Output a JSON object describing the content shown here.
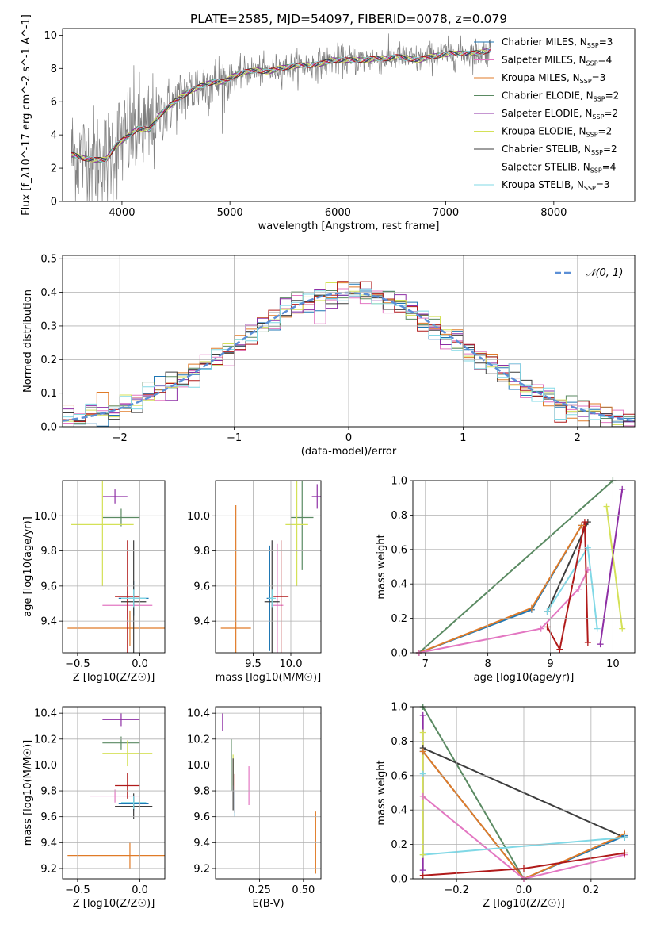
{
  "figure": {
    "title": "PLATE=2585, MJD=54097, FIBERID=0078, z=0.079"
  },
  "colors": {
    "Chabrier MILES": "#1f77b4",
    "Salpeter MILES": "#e377c2",
    "Kroupa MILES": "#e07b28",
    "Chabrier ELODIE": "#5a8a62",
    "Salpeter ELODIE": "#8e2fa5",
    "Kroupa ELODIE": "#d4e157",
    "Chabrier STELIB": "#3d3d3d",
    "Salpeter STELIB": "#b01a1a",
    "Kroupa STELIB": "#80d8e6",
    "data": "#808080",
    "gauss": "#5b8fd6"
  },
  "chart_data": [
    {
      "id": "spectrum",
      "type": "line",
      "xlabel": "wavelength [Angstrom, rest frame]",
      "ylabel": "Flux [f_λ10^-17 erg cm^-2 s^-1 A^-1]",
      "xlim": [
        3450,
        8750
      ],
      "ylim": [
        0,
        10.4
      ],
      "xticks": [
        4000,
        5000,
        6000,
        7000,
        8000
      ],
      "yticks": [
        0,
        2,
        4,
        6,
        8,
        10
      ],
      "grid": false,
      "legend_position": "right",
      "legend": [
        {
          "label": "Chabrier MILES, N_SSP=3",
          "series": "Chabrier MILES"
        },
        {
          "label": "Salpeter MILES, N_SSP=4",
          "series": "Salpeter MILES"
        },
        {
          "label": "Kroupa MILES, N_SSP=3",
          "series": "Kroupa MILES"
        },
        {
          "label": "Chabrier ELODIE, N_SSP=2",
          "series": "Chabrier ELODIE"
        },
        {
          "label": "Salpeter ELODIE, N_SSP=2",
          "series": "Salpeter ELODIE"
        },
        {
          "label": "Kroupa ELODIE, N_SSP=2",
          "series": "Kroupa ELODIE"
        },
        {
          "label": "Chabrier STELIB, N_SSP=2",
          "series": "Chabrier STELIB"
        },
        {
          "label": "Salpeter STELIB, N_SSP=4",
          "series": "Salpeter STELIB"
        },
        {
          "label": "Kroupa STELIB, N_SSP=3",
          "series": "Kroupa STELIB"
        }
      ],
      "continuum": {
        "x": [
          3550,
          3650,
          3750,
          3850,
          3950,
          4050,
          4150,
          4250,
          4350,
          4450,
          4550,
          4650,
          4750,
          4850,
          4950,
          5050,
          5150,
          5250,
          5350,
          5450,
          5550,
          5650,
          5750,
          5850,
          5950,
          6050,
          6150,
          6250,
          6350,
          6450,
          6550,
          6650,
          6750,
          6850,
          6950,
          7050,
          7150,
          7250,
          7350,
          7450,
          7550,
          7650,
          7750,
          7850,
          7950,
          8050,
          8150,
          8250,
          8350,
          8450
        ],
        "y": [
          2.8,
          2.6,
          2.5,
          2.5,
          3.4,
          3.9,
          4.4,
          4.3,
          5.2,
          5.8,
          6.3,
          6.7,
          7.0,
          7.2,
          7.2,
          7.6,
          7.8,
          7.9,
          7.8,
          8.0,
          8.1,
          8.2,
          8.2,
          8.3,
          8.5,
          8.5,
          8.5,
          8.5,
          8.6,
          8.6,
          8.7,
          8.6,
          8.5,
          8.7,
          8.8,
          8.9,
          8.9,
          8.9,
          9.0,
          9.2,
          9.3,
          9.3,
          9.3,
          9.4,
          9.5,
          9.6,
          9.6,
          9.4,
          9.3,
          9.2
        ]
      },
      "data_range": [
        3530,
        7420
      ]
    },
    {
      "id": "residuals",
      "type": "line",
      "xlabel": "(data-model)/error",
      "ylabel": "Normed distribution",
      "xlim": [
        -2.5,
        2.5
      ],
      "ylim": [
        0,
        0.51
      ],
      "xticks": [
        -2,
        -1,
        0,
        1,
        2
      ],
      "yticks": [
        0.0,
        0.1,
        0.2,
        0.3,
        0.4,
        0.5
      ],
      "grid": true,
      "legend": [
        {
          "label": "N(0,1)",
          "series": "gauss"
        }
      ],
      "legend_position": "top-right"
    },
    {
      "id": "age-vs-Z",
      "type": "scatter",
      "xlabel": "Z [log10(Z/Z☉)]",
      "ylabel": "age  [log10(age/yr)]",
      "xlim": [
        -0.62,
        0.2
      ],
      "ylim": [
        9.22,
        10.2
      ],
      "xticks": [
        -0.5,
        0.0
      ],
      "yticks": [
        9.4,
        9.6,
        9.8,
        10.0
      ],
      "grid": true,
      "points": [
        {
          "series": "Chabrier MILES",
          "x": -0.05,
          "y": 9.53,
          "xerr": 0.12,
          "yerr": 0.1
        },
        {
          "series": "Salpeter MILES",
          "x": -0.1,
          "y": 9.49,
          "xerr": 0.2,
          "yerr": 0.08
        },
        {
          "series": "Kroupa MILES",
          "x": -0.08,
          "y": 9.36,
          "xerr": 0.5,
          "yerr": 0.1
        },
        {
          "series": "Chabrier ELODIE",
          "x": -0.15,
          "y": 9.99,
          "xerr": 0.15,
          "yerr": 0.05
        },
        {
          "series": "Salpeter ELODIE",
          "x": -0.2,
          "y": 10.11,
          "xerr": 0.1,
          "yerr": 0.04
        },
        {
          "series": "Kroupa ELODIE",
          "x": -0.3,
          "y": 9.95,
          "xerr": 0.25,
          "yerr": 0.35
        },
        {
          "series": "Chabrier STELIB",
          "x": -0.05,
          "y": 9.51,
          "xerr": 0.1,
          "yerr": 0.35
        },
        {
          "series": "Salpeter STELIB",
          "x": -0.1,
          "y": 9.54,
          "xerr": 0.1,
          "yerr": 0.32
        },
        {
          "series": "Kroupa STELIB",
          "x": -0.05,
          "y": 9.53,
          "xerr": 0.1,
          "yerr": 0.05
        }
      ]
    },
    {
      "id": "age-vs-mass",
      "type": "scatter",
      "xlabel": "mass [log10(M/M☉)]",
      "ylabel": "",
      "xlim": [
        9.0,
        10.4
      ],
      "ylim": [
        9.22,
        10.2
      ],
      "xticks": [
        9.5,
        10.0
      ],
      "yticks": [
        9.4,
        9.6,
        9.8,
        10.0
      ],
      "grid": true,
      "points": [
        {
          "series": "Chabrier MILES",
          "x": 9.72,
          "y": 9.53,
          "xerr": 0.04,
          "yerr": 0.3
        },
        {
          "series": "Salpeter MILES",
          "x": 9.82,
          "y": 9.49,
          "xerr": 0.08,
          "yerr": 0.35
        },
        {
          "series": "Kroupa MILES",
          "x": 9.27,
          "y": 9.36,
          "xerr": 0.2,
          "yerr": 0.7
        },
        {
          "series": "Chabrier ELODIE",
          "x": 10.15,
          "y": 9.99,
          "xerr": 0.15,
          "yerr": 0.3
        },
        {
          "series": "Salpeter ELODIE",
          "x": 10.35,
          "y": 10.11,
          "xerr": 0.07,
          "yerr": 0.07
        },
        {
          "series": "Kroupa ELODIE",
          "x": 10.08,
          "y": 9.95,
          "xerr": 0.15,
          "yerr": 0.35
        },
        {
          "series": "Chabrier STELIB",
          "x": 9.75,
          "y": 9.51,
          "xerr": 0.1,
          "yerr": 0.35
        },
        {
          "series": "Salpeter STELIB",
          "x": 9.87,
          "y": 9.54,
          "xerr": 0.1,
          "yerr": 0.32
        },
        {
          "series": "Kroupa STELIB",
          "x": 9.75,
          "y": 9.53,
          "xerr": 0.05,
          "yerr": 0.05
        }
      ]
    },
    {
      "id": "mass-weight-vs-age",
      "type": "line",
      "xlabel": "age  [log10(age/yr)]",
      "ylabel": "mass weight",
      "xlim": [
        6.8,
        10.35
      ],
      "ylim": [
        0,
        1.0
      ],
      "xticks": [
        7,
        8,
        9,
        10
      ],
      "yticks": [
        0.0,
        0.2,
        0.4,
        0.6,
        0.8,
        1.0
      ],
      "grid": true,
      "series": [
        {
          "series": "Chabrier ELODIE",
          "x": [
            6.9,
            10.0
          ],
          "y": [
            0.0,
            1.0
          ]
        },
        {
          "series": "Chabrier MILES",
          "x": [
            6.9,
            8.7,
            9.5
          ],
          "y": [
            0.0,
            0.25,
            0.74
          ]
        },
        {
          "series": "Kroupa MILES",
          "x": [
            6.9,
            8.7,
            9.5
          ],
          "y": [
            0.0,
            0.26,
            0.74
          ]
        },
        {
          "series": "Salpeter MILES",
          "x": [
            6.9,
            8.85,
            9.45,
            9.6
          ],
          "y": [
            0.0,
            0.14,
            0.37,
            0.48
          ]
        },
        {
          "series": "Chabrier STELIB",
          "x": [
            8.95,
            9.6
          ],
          "y": [
            0.24,
            0.76
          ]
        },
        {
          "series": "Kroupa STELIB",
          "x": [
            8.95,
            9.6,
            9.75
          ],
          "y": [
            0.24,
            0.61,
            0.14
          ]
        },
        {
          "series": "Salpeter STELIB",
          "x": [
            8.95,
            9.15,
            9.55,
            9.6
          ],
          "y": [
            0.15,
            0.02,
            0.76,
            0.06
          ]
        },
        {
          "series": "Salpeter ELODIE",
          "x": [
            9.8,
            10.15
          ],
          "y": [
            0.05,
            0.95
          ]
        },
        {
          "series": "Kroupa ELODIE",
          "x": [
            9.9,
            10.15
          ],
          "y": [
            0.85,
            0.14
          ]
        }
      ]
    },
    {
      "id": "mass-vs-Z",
      "type": "scatter",
      "xlabel": "Z [log10(Z/Z☉)]",
      "ylabel": "mass [log10(M/M☉)]",
      "xlim": [
        -0.62,
        0.2
      ],
      "ylim": [
        9.12,
        10.45
      ],
      "xticks": [
        -0.5,
        0.0
      ],
      "yticks": [
        9.2,
        9.4,
        9.6,
        9.8,
        10.0,
        10.2,
        10.4
      ],
      "grid": true,
      "points": [
        {
          "series": "Chabrier MILES",
          "x": -0.05,
          "y": 9.7,
          "xerr": 0.12,
          "yerr": 0.05
        },
        {
          "series": "Salpeter MILES",
          "x": -0.2,
          "y": 9.76,
          "xerr": 0.2,
          "yerr": 0.05
        },
        {
          "series": "Kroupa MILES",
          "x": -0.08,
          "y": 9.3,
          "xerr": 0.5,
          "yerr": 0.1
        },
        {
          "series": "Chabrier ELODIE",
          "x": -0.15,
          "y": 10.17,
          "xerr": 0.15,
          "yerr": 0.05
        },
        {
          "series": "Salpeter ELODIE",
          "x": -0.15,
          "y": 10.35,
          "xerr": 0.15,
          "yerr": 0.05
        },
        {
          "series": "Kroupa ELODIE",
          "x": -0.1,
          "y": 10.09,
          "xerr": 0.2,
          "yerr": 0.1
        },
        {
          "series": "Chabrier STELIB",
          "x": -0.05,
          "y": 9.68,
          "xerr": 0.15,
          "yerr": 0.1
        },
        {
          "series": "Salpeter STELIB",
          "x": -0.1,
          "y": 9.84,
          "xerr": 0.1,
          "yerr": 0.1
        },
        {
          "series": "Kroupa STELIB",
          "x": -0.05,
          "y": 9.71,
          "xerr": 0.1,
          "yerr": 0.05
        }
      ]
    },
    {
      "id": "mass-vs-EBV",
      "type": "scatter",
      "xlabel": "E(B-V)",
      "ylabel": "",
      "xlim": [
        0.0,
        0.6
      ],
      "ylim": [
        9.12,
        10.45
      ],
      "xticks": [
        0.25,
        0.5
      ],
      "yticks": [
        9.2,
        9.4,
        9.6,
        9.8,
        10.0,
        10.2,
        10.4
      ],
      "grid": true,
      "points": [
        {
          "series": "Chabrier MILES",
          "x": 0.11,
          "y": 9.7,
          "xerr": 0.0,
          "yerr": 0.1
        },
        {
          "series": "Salpeter MILES",
          "x": 0.19,
          "y": 9.84,
          "xerr": 0.0,
          "yerr": 0.15
        },
        {
          "series": "Kroupa MILES",
          "x": 0.57,
          "y": 9.4,
          "xerr": 0.0,
          "yerr": 0.24
        },
        {
          "series": "Chabrier ELODIE",
          "x": 0.09,
          "y": 10.0,
          "xerr": 0.0,
          "yerr": 0.2
        },
        {
          "series": "Salpeter ELODIE",
          "x": 0.04,
          "y": 10.33,
          "xerr": 0.0,
          "yerr": 0.07
        },
        {
          "series": "Kroupa ELODIE",
          "x": 0.1,
          "y": 9.96,
          "xerr": 0.0,
          "yerr": 0.12
        },
        {
          "series": "Chabrier STELIB",
          "x": 0.1,
          "y": 9.85,
          "xerr": 0.0,
          "yerr": 0.2
        },
        {
          "series": "Salpeter STELIB",
          "x": 0.11,
          "y": 9.78,
          "xerr": 0.0,
          "yerr": 0.15
        },
        {
          "series": "Kroupa STELIB",
          "x": 0.11,
          "y": 9.71,
          "xerr": 0.0,
          "yerr": 0.1
        }
      ]
    },
    {
      "id": "mass-weight-vs-Z",
      "type": "line",
      "xlabel": "Z [log10(Z/Z☉)]",
      "ylabel": "mass weight",
      "xlim": [
        -0.33,
        0.33
      ],
      "ylim": [
        0,
        1.0
      ],
      "xticks": [
        -0.2,
        0.0,
        0.2
      ],
      "yticks": [
        0.0,
        0.2,
        0.4,
        0.6,
        0.8,
        1.0
      ],
      "grid": true,
      "series": [
        {
          "series": "Chabrier ELODIE",
          "x": [
            -0.3,
            0.0
          ],
          "y": [
            1.0,
            0.0
          ]
        },
        {
          "series": "Chabrier STELIB",
          "x": [
            -0.3,
            0.3
          ],
          "y": [
            0.76,
            0.24
          ]
        },
        {
          "series": "Chabrier MILES",
          "x": [
            -0.3,
            0.0,
            0.3
          ],
          "y": [
            0.74,
            0.0,
            0.25
          ]
        },
        {
          "series": "Kroupa MILES",
          "x": [
            -0.3,
            0.0,
            0.3
          ],
          "y": [
            0.74,
            0.0,
            0.26
          ]
        },
        {
          "series": "Salpeter MILES",
          "x": [
            -0.3,
            0.0,
            0.3
          ],
          "y": [
            0.48,
            0.0,
            0.14
          ]
        },
        {
          "series": "Kroupa STELIB",
          "x": [
            -0.3,
            -0.3,
            0.3
          ],
          "y": [
            0.61,
            0.14,
            0.24
          ]
        },
        {
          "series": "Salpeter STELIB",
          "x": [
            -0.3,
            0.0,
            0.3
          ],
          "y": [
            0.02,
            0.06,
            0.15
          ]
        },
        {
          "series": "Salpeter ELODIE",
          "x": [
            -0.3,
            -0.3
          ],
          "y": [
            0.95,
            0.05
          ]
        },
        {
          "series": "Kroupa ELODIE",
          "x": [
            -0.3,
            -0.3
          ],
          "y": [
            0.85,
            0.14
          ]
        }
      ]
    }
  ]
}
